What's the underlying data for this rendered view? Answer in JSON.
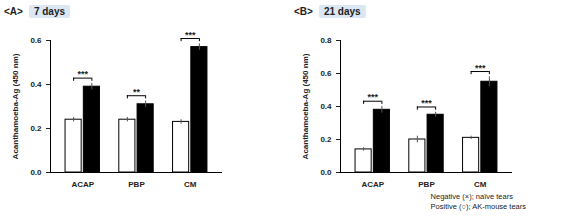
{
  "chart_data": [
    {
      "type": "bar",
      "label": "<A>",
      "title": "7 days",
      "ylabel": "Acanthamoeba-Ag (450 nm)",
      "categories": [
        "ACAP",
        "PBP",
        "CM"
      ],
      "series": [
        {
          "name": "Negative (×); naïve tears",
          "color": "#ffffff",
          "values": [
            0.24,
            0.24,
            0.23
          ],
          "errors": [
            0.01,
            0.01,
            0.01
          ]
        },
        {
          "name": "Positive (○); AK-mouse tears",
          "color": "#000000",
          "values": [
            0.39,
            0.31,
            0.57
          ],
          "errors": [
            0.015,
            0.015,
            0.015
          ]
        }
      ],
      "significance": [
        "***",
        "**",
        "***"
      ],
      "ylim": [
        0,
        0.6
      ],
      "yticks": [
        {
          "value": 0,
          "label": "0.0"
        },
        0.2,
        0.4,
        0.6
      ],
      "legend": false
    },
    {
      "type": "bar",
      "label": "<B>",
      "title": "21 days",
      "ylabel": "Acanthamoeba-Ag (450 nm)",
      "categories": [
        "ACAP",
        "PBP",
        "CM"
      ],
      "series": [
        {
          "name": "Negative (×); naïve tears",
          "color": "#ffffff",
          "values": [
            0.14,
            0.2,
            0.21
          ],
          "errors": [
            0.01,
            0.02,
            0.01
          ]
        },
        {
          "name": "Positive (○); AK-mouse tears",
          "color": "#000000",
          "values": [
            0.38,
            0.35,
            0.55
          ],
          "errors": [
            0.02,
            0.015,
            0.03
          ]
        }
      ],
      "significance": [
        "***",
        "***",
        "***"
      ],
      "ylim": [
        0,
        0.8
      ],
      "yticks": [
        {
          "value": 0,
          "label": "0.0"
        },
        0.2,
        0.4,
        0.6,
        0.8
      ],
      "legend": "bottom-right"
    }
  ]
}
